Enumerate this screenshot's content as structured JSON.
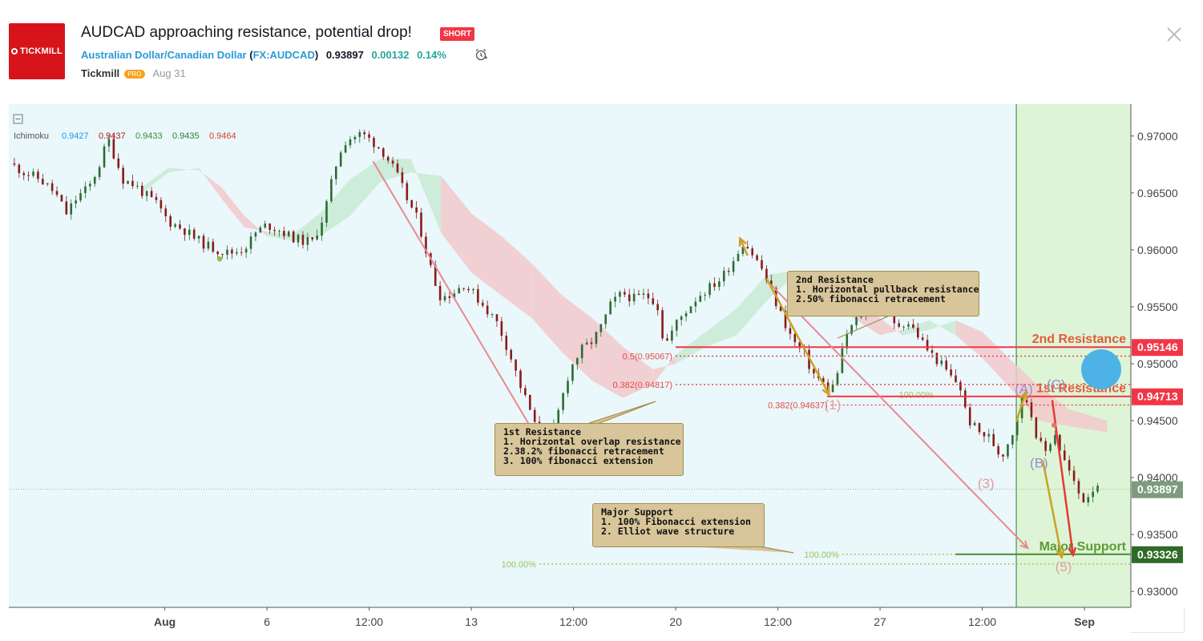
{
  "header": {
    "logo_text": "TICKMILL",
    "title": "AUDCAD approaching resistance, potential drop!",
    "badge": "SHORT",
    "symbol_name": "Australian Dollar/Canadian Dollar",
    "symbol_code": "FX:AUDCAD",
    "price": "0.93897",
    "change": "0.00132",
    "change_pct": "0.14%",
    "author": "Tickmill",
    "author_badge": "PRO",
    "date": "Aug 31",
    "icons": {
      "alarm": "alarm-clock-icon",
      "close": "close-icon",
      "collapse": "collapse-square-icon"
    }
  },
  "indicator": {
    "name": "Ichimoku",
    "values": [
      {
        "v": "0.9427",
        "color": "#2196f3"
      },
      {
        "v": "0.9437",
        "color": "#b71c1c"
      },
      {
        "v": "0.9433",
        "color": "#388e3c"
      },
      {
        "v": "0.9435",
        "color": "#2e7d32"
      },
      {
        "v": "0.9464",
        "color": "#e53935"
      }
    ]
  },
  "colors": {
    "chart_bg": "#eaf7fb",
    "forecast_bg": "#ddf5d6",
    "resistance": "#f23645",
    "support": "#4a8a2a",
    "bull_candle": "#2e6b32",
    "bear_candle": "#8b1a1a",
    "kumo_bear": "#f2c9cc",
    "kumo_bull": "#c8ead2",
    "arrow_pink": "#e88a90",
    "arrow_gold": "#c9a227",
    "arrow_red": "#e53935",
    "circle": "#4db3e6",
    "note_fill": "#d8c69a"
  },
  "chart_data": {
    "type": "candlestick",
    "symbol": "AUDCAD",
    "yaxis": {
      "range": [
        0.9286,
        0.9728
      ],
      "ticks": [
        "0.97000",
        "0.96500",
        "0.96000",
        "0.95500",
        "0.95000",
        "0.94500",
        "0.94000",
        "0.93500",
        "0.93000"
      ]
    },
    "xaxis": {
      "ticks": [
        {
          "label": "Aug",
          "bold": true,
          "d": 4.1
        },
        {
          "label": "6",
          "d": 6.8
        },
        {
          "label": "12:00",
          "d": 9.5
        },
        {
          "label": "13",
          "d": 12.2
        },
        {
          "label": "12:00",
          "d": 14.9
        },
        {
          "label": "20",
          "d": 17.6
        },
        {
          "label": "12:00",
          "d": 20.3
        },
        {
          "label": "27",
          "d": 23.0
        },
        {
          "label": "12:00",
          "d": 25.7
        },
        {
          "label": "Sep",
          "bold": true,
          "d": 28.4
        }
      ],
      "forecast_start_d": 26.6
    },
    "close_path": [
      [
        0.0,
        0.9676
      ],
      [
        0.4,
        0.9668
      ],
      [
        0.8,
        0.9662
      ],
      [
        1.2,
        0.965
      ],
      [
        1.5,
        0.9632
      ],
      [
        1.8,
        0.9647
      ],
      [
        2.1,
        0.9655
      ],
      [
        2.4,
        0.9677
      ],
      [
        2.6,
        0.9698
      ],
      [
        2.8,
        0.968
      ],
      [
        3.0,
        0.9662
      ],
      [
        3.3,
        0.9657
      ],
      [
        3.6,
        0.9648
      ],
      [
        3.9,
        0.964
      ],
      [
        4.2,
        0.9625
      ],
      [
        4.6,
        0.9618
      ],
      [
        4.9,
        0.961
      ],
      [
        5.2,
        0.9604
      ],
      [
        5.5,
        0.96
      ],
      [
        5.8,
        0.9597
      ],
      [
        6.1,
        0.96
      ],
      [
        6.3,
        0.9605
      ],
      [
        6.5,
        0.9615
      ],
      [
        6.8,
        0.9622
      ],
      [
        7.1,
        0.9618
      ],
      [
        7.4,
        0.9612
      ],
      [
        7.7,
        0.9608
      ],
      [
        8.0,
        0.9607
      ],
      [
        8.3,
        0.963
      ],
      [
        8.5,
        0.9658
      ],
      [
        8.7,
        0.9685
      ],
      [
        8.9,
        0.9697
      ],
      [
        9.3,
        0.9702
      ],
      [
        9.6,
        0.9695
      ],
      [
        9.9,
        0.9685
      ],
      [
        10.2,
        0.9668
      ],
      [
        10.5,
        0.9645
      ],
      [
        10.8,
        0.9625
      ],
      [
        11.0,
        0.96
      ],
      [
        11.2,
        0.9575
      ],
      [
        11.4,
        0.9558
      ],
      [
        11.7,
        0.9562
      ],
      [
        12.0,
        0.957
      ],
      [
        12.3,
        0.956
      ],
      [
        12.6,
        0.9548
      ],
      [
        12.9,
        0.9535
      ],
      [
        13.2,
        0.951
      ],
      [
        13.5,
        0.948
      ],
      [
        13.8,
        0.9455
      ],
      [
        14.0,
        0.943
      ],
      [
        14.2,
        0.9423
      ],
      [
        14.4,
        0.9445
      ],
      [
        14.6,
        0.947
      ],
      [
        14.8,
        0.9495
      ],
      [
        15.1,
        0.9512
      ],
      [
        15.4,
        0.952
      ],
      [
        15.6,
        0.953
      ],
      [
        15.9,
        0.9553
      ],
      [
        16.2,
        0.9562
      ],
      [
        16.5,
        0.9557
      ],
      [
        16.8,
        0.956
      ],
      [
        17.1,
        0.9555
      ],
      [
        17.3,
        0.9515
      ],
      [
        17.6,
        0.9535
      ],
      [
        17.9,
        0.9548
      ],
      [
        18.2,
        0.956
      ],
      [
        18.5,
        0.9567
      ],
      [
        18.8,
        0.9575
      ],
      [
        19.1,
        0.959
      ],
      [
        19.4,
        0.9608
      ],
      [
        19.6,
        0.9598
      ],
      [
        19.9,
        0.9582
      ],
      [
        20.1,
        0.9565
      ],
      [
        20.4,
        0.9542
      ],
      [
        20.7,
        0.952
      ],
      [
        21.0,
        0.9508
      ],
      [
        21.2,
        0.9493
      ],
      [
        21.5,
        0.9482
      ],
      [
        21.7,
        0.9475
      ],
      [
        21.9,
        0.9495
      ],
      [
        22.1,
        0.9525
      ],
      [
        22.3,
        0.9535
      ],
      [
        22.6,
        0.9548
      ],
      [
        22.9,
        0.956
      ],
      [
        23.2,
        0.9545
      ],
      [
        23.4,
        0.9532
      ],
      [
        23.7,
        0.9538
      ],
      [
        24.0,
        0.9525
      ],
      [
        24.3,
        0.951
      ],
      [
        24.6,
        0.95
      ],
      [
        24.9,
        0.9487
      ],
      [
        25.1,
        0.9482
      ],
      [
        25.3,
        0.9452
      ],
      [
        25.6,
        0.944
      ],
      [
        25.9,
        0.9435
      ],
      [
        26.2,
        0.9418
      ],
      [
        26.5,
        0.944
      ],
      [
        26.8,
        0.9475
      ],
      [
        27.0,
        0.9455
      ],
      [
        27.2,
        0.943
      ],
      [
        27.4,
        0.9422
      ],
      [
        27.6,
        0.9442
      ],
      [
        27.8,
        0.942
      ],
      [
        28.0,
        0.9405
      ],
      [
        28.2,
        0.9388
      ],
      [
        28.4,
        0.938
      ],
      [
        28.6,
        0.939
      ],
      [
        28.8,
        0.9397
      ]
    ],
    "kumo": [
      [
        3.5,
        0.9655,
        0.965,
        "bull"
      ],
      [
        4.2,
        0.9672,
        0.9668,
        "bull"
      ],
      [
        5.0,
        0.967,
        0.9672,
        "bear"
      ],
      [
        5.6,
        0.9655,
        0.9645,
        "bear"
      ],
      [
        6.2,
        0.963,
        0.962,
        "bear"
      ],
      [
        6.8,
        0.9612,
        0.9616,
        "bull"
      ],
      [
        7.5,
        0.9608,
        0.9614,
        "bull"
      ],
      [
        8.2,
        0.9612,
        0.9632,
        "bull"
      ],
      [
        9.0,
        0.963,
        0.9662,
        "bull"
      ],
      [
        9.8,
        0.966,
        0.968,
        "bull"
      ],
      [
        10.6,
        0.9668,
        0.968,
        "bull"
      ],
      [
        11.4,
        0.9665,
        0.9615,
        "bear"
      ],
      [
        12.2,
        0.9632,
        0.958,
        "bear"
      ],
      [
        13.0,
        0.9612,
        0.956,
        "bear"
      ],
      [
        13.8,
        0.9588,
        0.954,
        "bear"
      ],
      [
        14.6,
        0.956,
        0.951,
        "bear"
      ],
      [
        15.4,
        0.954,
        0.9485,
        "bear"
      ],
      [
        16.2,
        0.9515,
        0.947,
        "bear"
      ],
      [
        17.0,
        0.9495,
        0.9482,
        "bear"
      ],
      [
        17.6,
        0.95,
        0.9508,
        "bull"
      ],
      [
        18.4,
        0.9515,
        0.9528,
        "bull"
      ],
      [
        19.2,
        0.9525,
        0.9548,
        "bull"
      ],
      [
        20.0,
        0.9555,
        0.9578,
        "bull"
      ],
      [
        20.8,
        0.958,
        0.9582,
        "bull"
      ],
      [
        21.5,
        0.9575,
        0.956,
        "bear"
      ],
      [
        22.3,
        0.9555,
        0.954,
        "bear"
      ],
      [
        23.0,
        0.954,
        0.9525,
        "bear"
      ],
      [
        23.6,
        0.9525,
        0.953,
        "bull"
      ],
      [
        24.3,
        0.953,
        0.9538,
        "bull"
      ],
      [
        25.0,
        0.9538,
        0.9525,
        "bear"
      ],
      [
        25.7,
        0.9528,
        0.9505,
        "bear"
      ],
      [
        26.4,
        0.9505,
        0.948,
        "bear"
      ],
      [
        27.2,
        0.948,
        0.945,
        "bear"
      ],
      [
        28.0,
        0.946,
        0.9445,
        "bear"
      ],
      [
        29.0,
        0.945,
        0.944,
        "bear"
      ]
    ],
    "levels": [
      {
        "name": "2nd Resistance",
        "price": 0.95146,
        "label": "0.95146",
        "color": "#f23645",
        "style": "solid",
        "from_d": 17.6
      },
      {
        "name": "1st Resistance",
        "price": 0.94713,
        "label": "0.94713",
        "color": "#f23645",
        "style": "solid",
        "from_d": 21.6
      },
      {
        "name": "Major Support",
        "price": 0.93326,
        "label": "0.93326",
        "color": "#4a8a2a",
        "style": "solid",
        "from_d": 25.0
      },
      {
        "name": "current",
        "price": 0.93897,
        "label": "0.93897",
        "color": "#7e9b7e",
        "style": "dotted",
        "from_d": 0
      }
    ],
    "level_labels": [
      {
        "text": "2nd Resistance",
        "price": 0.95146,
        "color": "#e55a3a"
      },
      {
        "text": "1st Resistance",
        "price": 0.94713,
        "color": "#e55a3a"
      },
      {
        "text": "Major Support",
        "price": 0.93326,
        "color": "#5e9a36"
      }
    ],
    "fib_lines": [
      {
        "label": "0.5(0.95067)",
        "price": 0.95067,
        "from_d": 17.6,
        "color": "#e53935"
      },
      {
        "label": "0.382(0.94817)",
        "price": 0.94817,
        "from_d": 17.6,
        "color": "#e53935"
      },
      {
        "label": "0.382(0.94637)",
        "price": 0.94637,
        "from_d": 21.7,
        "color": "#e53935"
      },
      {
        "label": "100.00%",
        "price": 0.93326,
        "from_d": 22.0,
        "color": "#8bc34a"
      },
      {
        "label": "100.00%",
        "price": 0.9324,
        "from_d": 14.0,
        "color": "#8bc34a"
      },
      {
        "label": "100.00%",
        "price": 0.9473,
        "from_d": 24.5,
        "color": "#8bc34a",
        "no_line": true
      }
    ],
    "waves": [
      {
        "label": "(1)",
        "d": 21.75,
        "p": 0.9464,
        "color": "#e89aa0"
      },
      {
        "label": "(2)",
        "d": 23.25,
        "p": 0.9572,
        "color": "#e89aa0"
      },
      {
        "label": "(3)",
        "d": 25.8,
        "p": 0.9395,
        "color": "#e89aa0"
      },
      {
        "label": "(5)",
        "d": 27.85,
        "p": 0.9322,
        "color": "#e89aa0"
      },
      {
        "label": "(A)",
        "d": 26.8,
        "p": 0.9478,
        "color": "#9a8ad0"
      },
      {
        "label": "(B)",
        "d": 27.2,
        "p": 0.9413,
        "color": "#9a8ad0"
      },
      {
        "label": "(C)",
        "d": 27.65,
        "p": 0.9482,
        "color": "#9a8ad0"
      }
    ],
    "arrows": [
      {
        "from": [
          9.6,
          0.9678
        ],
        "to": [
          14.2,
          0.942
        ],
        "color": "#e88a90",
        "width": 2
      },
      {
        "from": [
          20.1,
          0.957
        ],
        "to": [
          26.9,
          0.9338
        ],
        "color": "#e88a90",
        "width": 2
      },
      {
        "from": [
          20.0,
          0.9575
        ],
        "to": [
          21.65,
          0.9473
        ],
        "color": "#c9a227",
        "width": 2.5
      },
      {
        "from": [
          19.5,
          0.9595
        ],
        "to": [
          19.3,
          0.961
        ],
        "color": "#c9a227",
        "width": 2.5
      },
      {
        "from": [
          27.3,
          0.9415
        ],
        "to": [
          27.8,
          0.933
        ],
        "color": "#c9a227",
        "width": 2.5
      },
      {
        "from": [
          26.6,
          0.9449
        ],
        "to": [
          26.85,
          0.9475
        ],
        "color": "#c9a227",
        "width": 2.5
      },
      {
        "from": [
          27.55,
          0.9468
        ],
        "to": [
          28.1,
          0.9332
        ],
        "color": "#e53935",
        "width": 2.5
      }
    ],
    "notes": [
      {
        "title": "2nd Resistance",
        "lines": [
          "1. Horizontal pullback resistance",
          "2.50% fibonacci retracement"
        ]
      },
      {
        "title": "1st Resistance",
        "lines": [
          "1. Horizontal overlap resistance",
          "2.38.2% fibonacci retracement",
          "3. 100% fibonacci extension"
        ]
      },
      {
        "title": "Major Support",
        "lines": [
          "1. 100% Fibonacci extension",
          "2. Elliot wave structure"
        ]
      }
    ],
    "dots": [
      {
        "d": 5.55,
        "p": 0.9592,
        "color": "#8bc34a"
      },
      {
        "d": 27.6,
        "p": 0.9446,
        "color": "#e57373"
      }
    ]
  }
}
